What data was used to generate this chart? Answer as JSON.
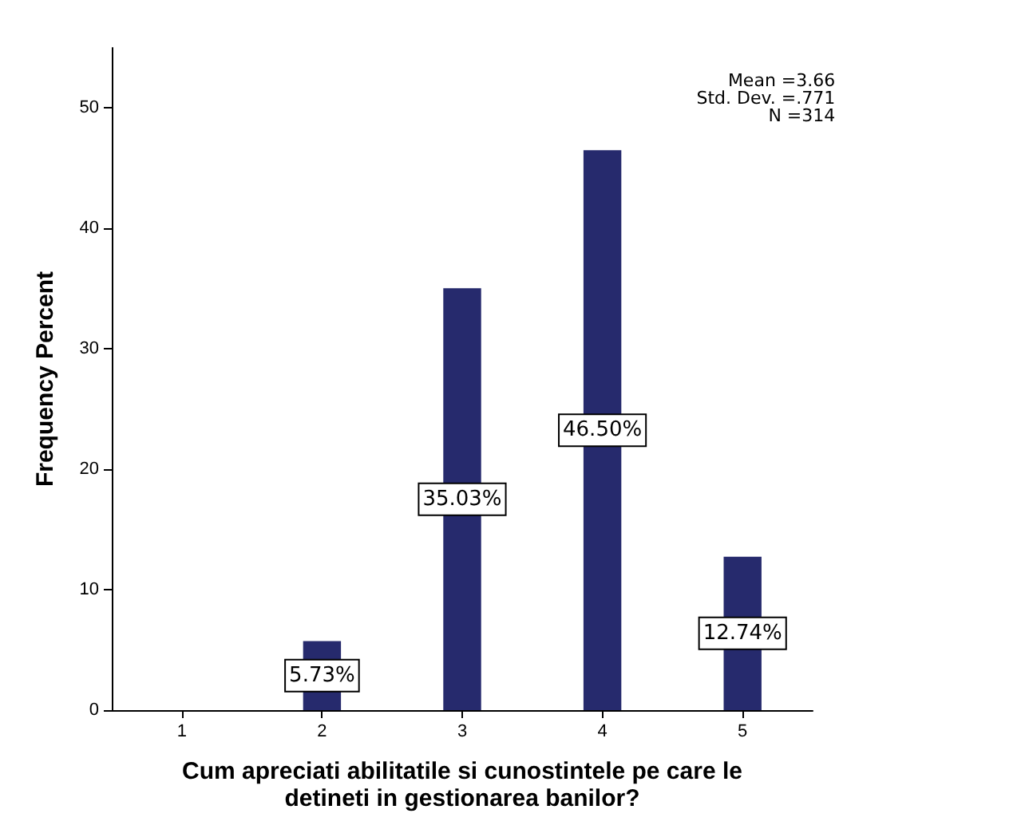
{
  "chart_data": {
    "type": "bar",
    "xlabel": "Cum apreciati abilitatile si cunostintele pe care le\ndetineti in gestionarea banilor?",
    "ylabel": "Frequency Percent",
    "categories": [
      "1",
      "2",
      "3",
      "4",
      "5"
    ],
    "values": [
      null,
      5.73,
      35.03,
      46.5,
      12.74
    ],
    "value_labels": [
      null,
      "5.73%",
      "35.03%",
      "46.50%",
      "12.74%"
    ],
    "color": "#262a6d",
    "ylim": [
      0,
      55
    ],
    "yticks": [
      0,
      10,
      20,
      30,
      40,
      50
    ],
    "grid": false,
    "annotations": [
      "Mean =3.66\nStd. Dev. =.771\nN =314"
    ]
  }
}
